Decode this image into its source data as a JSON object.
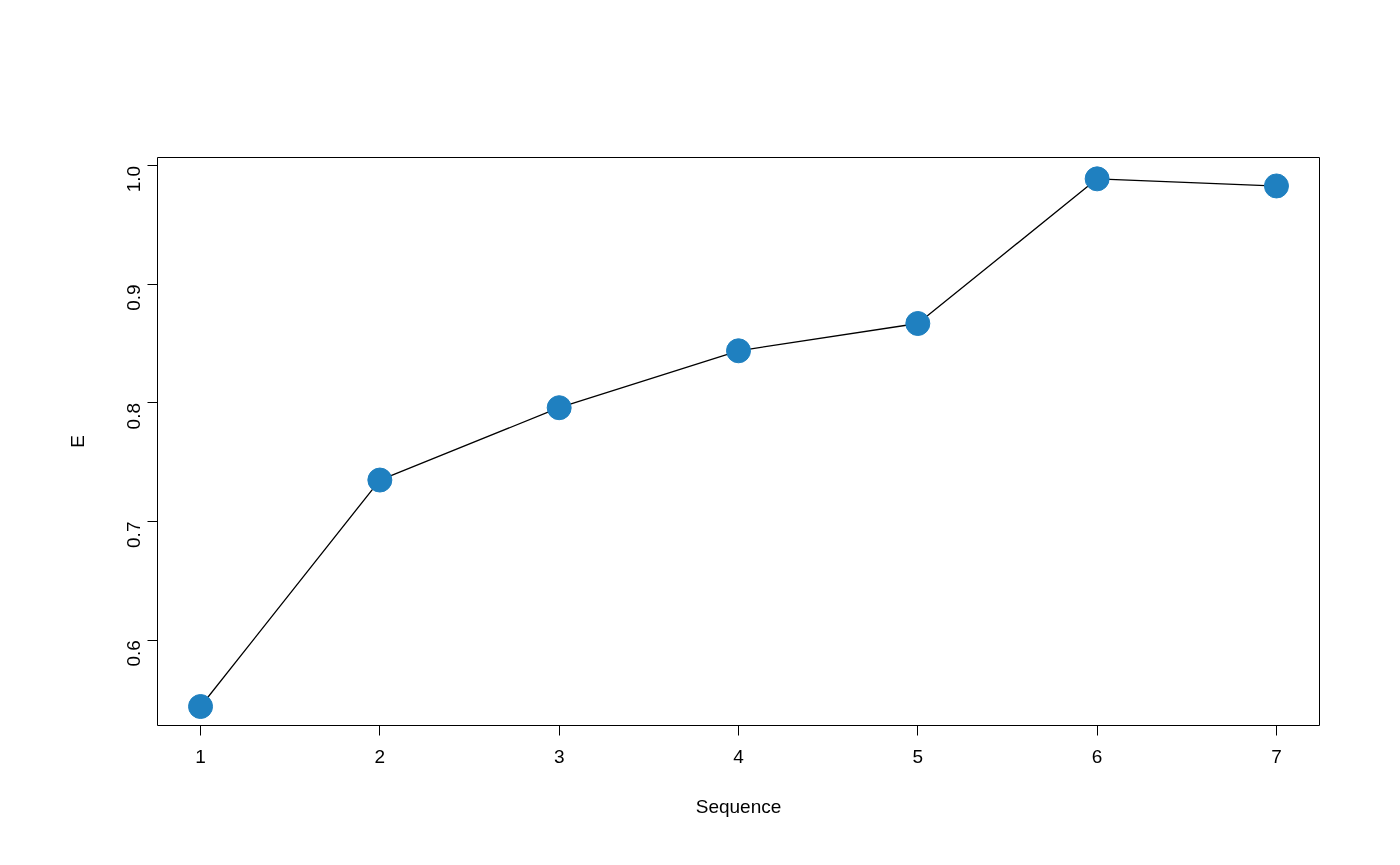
{
  "chart_data": {
    "type": "line",
    "xlabel": "Sequence",
    "ylabel": "E",
    "x": [
      1,
      2,
      3,
      4,
      5,
      6,
      7
    ],
    "series": [
      {
        "color": "#1f80c0",
        "values": [
          0.544,
          0.735,
          0.796,
          0.844,
          0.867,
          0.989,
          0.983
        ]
      }
    ],
    "xlim": [
      0.76,
      7.24
    ],
    "ylim": [
      0.528,
      1.007
    ],
    "xticks": [
      1,
      2,
      3,
      4,
      5,
      6,
      7
    ],
    "yticks": [
      0.6,
      0.7,
      0.8,
      0.9,
      {
        "value": 1,
        "label": "1.0"
      }
    ],
    "marker": "circle",
    "line_style": "solid",
    "grid": false
  }
}
